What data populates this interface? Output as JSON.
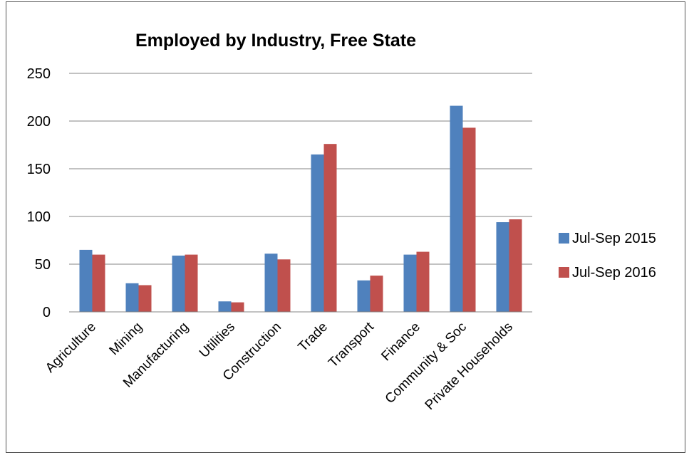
{
  "chart_data": {
    "type": "bar",
    "title": "Employed by Industry, Free State",
    "xlabel": "",
    "ylabel": "",
    "categories": [
      "Agriculture",
      "Mining",
      "Manufacturing",
      "Utilities",
      "Construction",
      "Trade",
      "Transport",
      "Finance",
      "Community & Soc",
      "Private Households"
    ],
    "series": [
      {
        "name": "Jul-Sep 2015",
        "color": "#4F81BD",
        "values": [
          65,
          30,
          59,
          11,
          61,
          165,
          33,
          60,
          216,
          94
        ]
      },
      {
        "name": "Jul-Sep 2016",
        "color": "#C0504D",
        "values": [
          60,
          28,
          60,
          10,
          55,
          176,
          38,
          63,
          193,
          97
        ]
      }
    ],
    "ylim": [
      0,
      250
    ],
    "yticks": [
      0,
      50,
      100,
      150,
      200,
      250
    ],
    "grid": true,
    "legend_position": "right"
  }
}
